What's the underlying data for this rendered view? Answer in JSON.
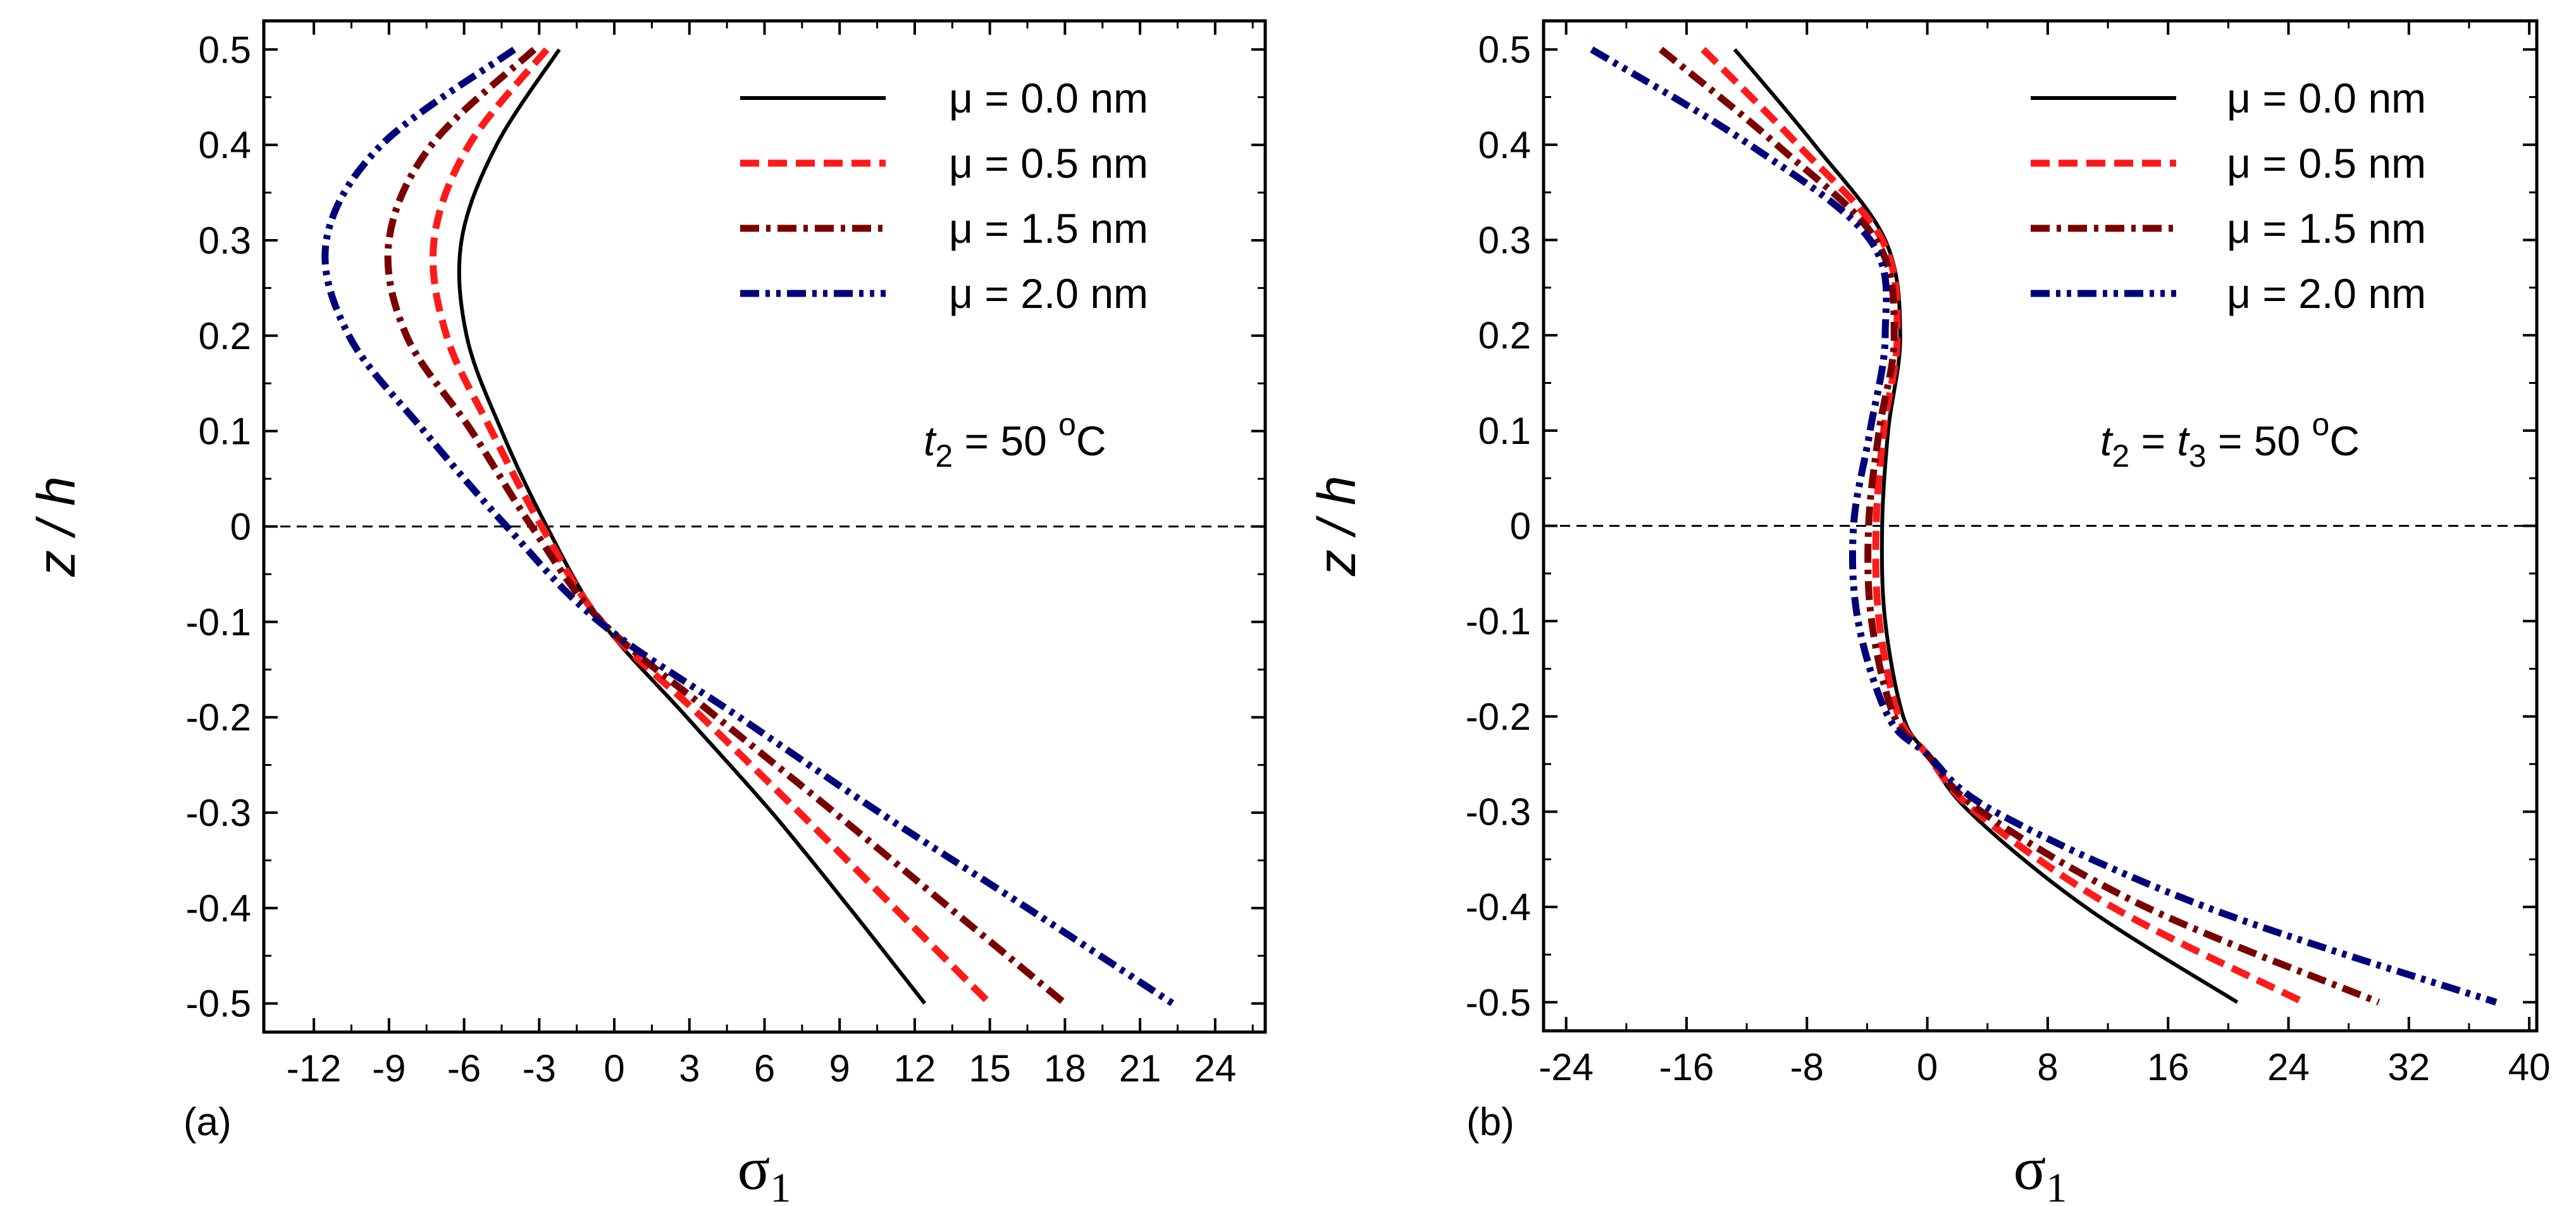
{
  "chart_data": [
    {
      "type": "line",
      "panel_label": "(a)",
      "xlabel": "σ",
      "xlabel_sub": "1",
      "ylabel": "z / h",
      "xlim": [
        -14,
        26
      ],
      "ylim": [
        -0.53,
        0.53
      ],
      "xticks": [
        -12,
        -9,
        -6,
        -3,
        0,
        3,
        6,
        9,
        12,
        15,
        18,
        21,
        24
      ],
      "yticks": [
        0.5,
        0.4,
        0.3,
        0.2,
        0.1,
        0,
        -0.1,
        -0.2,
        -0.3,
        -0.4,
        -0.5
      ],
      "reference_line": 0,
      "legend_position": "top-right",
      "annotation": {
        "t": "t",
        "sub": "2",
        "rest": " = 50  ",
        "sup": "o",
        "unit": "C"
      },
      "series": [
        {
          "name": "μ = 0.0 nm",
          "color": "#000000",
          "style": "solid",
          "z": [
            0.5,
            0.4,
            0.3,
            0.2,
            0.1,
            0,
            -0.1,
            -0.2,
            -0.3,
            -0.4,
            -0.5
          ],
          "sigma": [
            -2.2,
            -4.7,
            -6.1,
            -5.9,
            -4.5,
            -2.7,
            -0.5,
            2.9,
            6.3,
            9.4,
            12.4
          ]
        },
        {
          "name": "μ = 0.5 nm",
          "color": "#ff1a1a",
          "style": "dash",
          "z": [
            0.5,
            0.4,
            0.3,
            0.2,
            0.1,
            0,
            -0.1,
            -0.2,
            -0.3,
            -0.4,
            -0.5
          ],
          "sigma": [
            -2.7,
            -5.8,
            -7.2,
            -6.7,
            -4.9,
            -2.9,
            -0.5,
            3.5,
            7.4,
            11.2,
            15.0
          ]
        },
        {
          "name": "μ = 1.5 nm",
          "color": "#7a0000",
          "style": "dashdot",
          "z": [
            0.5,
            0.4,
            0.3,
            0.2,
            0.1,
            0,
            -0.1,
            -0.2,
            -0.3,
            -0.4,
            -0.5
          ],
          "sigma": [
            -3.2,
            -7.3,
            -9.0,
            -8.3,
            -5.7,
            -3.3,
            -0.5,
            4.1,
            8.8,
            13.4,
            18.0
          ]
        },
        {
          "name": "μ = 2.0 nm",
          "color": "#00007a",
          "style": "dashdotdot",
          "z": [
            0.5,
            0.4,
            0.3,
            0.2,
            0.1,
            0,
            -0.1,
            -0.2,
            -0.3,
            -0.4,
            -0.5
          ],
          "sigma": [
            -4.0,
            -9.3,
            -11.5,
            -10.6,
            -7.6,
            -4.3,
            -0.6,
            5.0,
            10.6,
            16.5,
            22.3
          ]
        }
      ],
      "legend": [
        "μ = 0.0 nm",
        "μ = 0.5 nm",
        "μ = 1.5 nm",
        "μ = 2.0 nm"
      ]
    },
    {
      "type": "line",
      "panel_label": "(b)",
      "xlabel": "σ",
      "xlabel_sub": "1",
      "ylabel": "z / h",
      "xlim": [
        -25.5,
        40.5
      ],
      "ylim": [
        -0.53,
        0.53
      ],
      "xticks": [
        -24,
        -16,
        -8,
        0,
        8,
        16,
        24,
        32,
        40
      ],
      "yticks": [
        0.5,
        0.4,
        0.3,
        0.2,
        0.1,
        0,
        -0.1,
        -0.2,
        -0.3,
        -0.4,
        -0.5
      ],
      "reference_line": 0,
      "legend_position": "top-right",
      "annotation": {
        "t": "t",
        "sub": "2",
        "rest": " = ",
        "t2": "t",
        "sub2": "3",
        "rest2": " = 50  ",
        "sup": "o",
        "unit": "C"
      },
      "series": [
        {
          "name": "μ = 0.0 nm",
          "color": "#000000",
          "style": "solid",
          "z": [
            0.5,
            0.4,
            0.3,
            0.2,
            0.1,
            0,
            -0.1,
            -0.2,
            -0.24,
            -0.3,
            -0.4,
            -0.5
          ],
          "sigma": [
            -12.8,
            -7.5,
            -2.8,
            -1.8,
            -2.6,
            -3.0,
            -2.8,
            -1.6,
            0.0,
            2.8,
            10.5,
            20.6
          ]
        },
        {
          "name": "μ = 0.5 nm",
          "color": "#ff1a1a",
          "style": "dash",
          "z": [
            0.5,
            0.4,
            0.3,
            0.2,
            0.1,
            0,
            -0.1,
            -0.2,
            -0.24,
            -0.3,
            -0.4,
            -0.5
          ],
          "sigma": [
            -14.9,
            -8.6,
            -3.0,
            -2.0,
            -2.9,
            -3.4,
            -3.2,
            -1.9,
            0.0,
            3.2,
            12.3,
            25.0
          ]
        },
        {
          "name": "μ = 1.5 nm",
          "color": "#7a0000",
          "style": "dashdot",
          "z": [
            0.5,
            0.4,
            0.3,
            0.2,
            0.1,
            0,
            -0.1,
            -0.2,
            -0.24,
            -0.3,
            -0.4,
            -0.5
          ],
          "sigma": [
            -17.7,
            -10.0,
            -3.4,
            -2.2,
            -3.2,
            -3.9,
            -3.7,
            -2.2,
            0.0,
            3.6,
            14.5,
            30.0
          ]
        },
        {
          "name": "μ = 2.0 nm",
          "color": "#00007a",
          "style": "dashdotdot",
          "z": [
            0.5,
            0.4,
            0.3,
            0.2,
            0.1,
            0,
            -0.1,
            -0.2,
            -0.24,
            -0.3,
            -0.4,
            -0.5
          ],
          "sigma": [
            -22.3,
            -11.8,
            -3.8,
            -2.8,
            -3.8,
            -4.9,
            -4.6,
            -2.6,
            0.0,
            4.5,
            18.5,
            37.8
          ]
        }
      ],
      "legend": [
        "μ = 0.0 nm",
        "μ = 0.5 nm",
        "μ = 1.5 nm",
        "μ = 2.0 nm"
      ]
    }
  ]
}
